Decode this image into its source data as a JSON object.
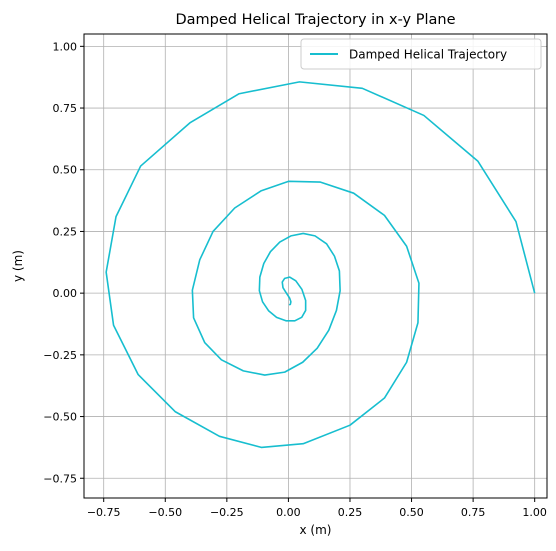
{
  "chart_data": {
    "type": "line",
    "title": "Damped Helical Trajectory in x-y Plane",
    "xlabel": "x (m)",
    "ylabel": "y (m)",
    "xlim": [
      -0.83,
      1.05
    ],
    "ylim": [
      -0.83,
      1.05
    ],
    "grid": true,
    "legend_position": "top-right",
    "xticks": [
      -0.75,
      -0.5,
      -0.25,
      0.0,
      0.25,
      0.5,
      0.75,
      1.0
    ],
    "xtick_labels": [
      "−0.75",
      "−0.50",
      "−0.25",
      "0.00",
      "0.25",
      "0.50",
      "0.75",
      "1.00"
    ],
    "yticks": [
      -0.75,
      -0.5,
      -0.25,
      0.0,
      0.25,
      0.5,
      0.75,
      1.0
    ],
    "ytick_labels": [
      "−0.75",
      "−0.50",
      "−0.25",
      "0.00",
      "0.25",
      "0.50",
      "0.75",
      "1.00"
    ],
    "series": [
      {
        "name": "Damped Helical Trajectory",
        "color": "#17becf",
        "x": [
          1.0,
          0.924,
          0.769,
          0.55,
          0.3,
          0.045,
          -0.2,
          -0.4,
          -0.6,
          -0.7,
          -0.74,
          -0.71,
          -0.61,
          -0.46,
          -0.28,
          -0.11,
          0.06,
          0.25,
          0.39,
          0.48,
          0.526,
          0.53,
          0.48,
          0.39,
          0.265,
          0.13,
          0.0,
          -0.11,
          -0.218,
          -0.306,
          -0.36,
          -0.39,
          -0.385,
          -0.34,
          -0.272,
          -0.183,
          -0.096,
          -0.015,
          0.058,
          0.117,
          0.164,
          0.195,
          0.21,
          0.207,
          0.187,
          0.155,
          0.108,
          0.06,
          0.01,
          -0.035,
          -0.073,
          -0.1,
          -0.116,
          -0.118,
          -0.105,
          -0.08,
          -0.048,
          -0.01,
          0.026,
          0.054,
          0.07,
          0.07,
          0.055,
          0.03,
          0.005,
          -0.015,
          -0.025,
          -0.022,
          -0.01,
          0.005,
          0.01,
          0.008,
          0.003
        ],
        "y": [
          0.0,
          0.29,
          0.535,
          0.72,
          0.83,
          0.856,
          0.808,
          0.69,
          0.515,
          0.31,
          0.085,
          -0.13,
          -0.33,
          -0.48,
          -0.58,
          -0.625,
          -0.61,
          -0.535,
          -0.425,
          -0.28,
          -0.12,
          0.04,
          0.19,
          0.315,
          0.405,
          0.45,
          0.453,
          0.415,
          0.345,
          0.25,
          0.135,
          0.012,
          -0.1,
          -0.2,
          -0.27,
          -0.315,
          -0.332,
          -0.32,
          -0.28,
          -0.223,
          -0.15,
          -0.07,
          0.01,
          0.09,
          0.15,
          0.2,
          0.232,
          0.242,
          0.232,
          0.207,
          0.168,
          0.12,
          0.065,
          0.01,
          -0.035,
          -0.072,
          -0.098,
          -0.112,
          -0.112,
          -0.098,
          -0.07,
          -0.03,
          0.015,
          0.05,
          0.065,
          0.06,
          0.045,
          0.022,
          0.003,
          -0.02,
          -0.035,
          -0.045,
          -0.048
        ]
      }
    ]
  }
}
